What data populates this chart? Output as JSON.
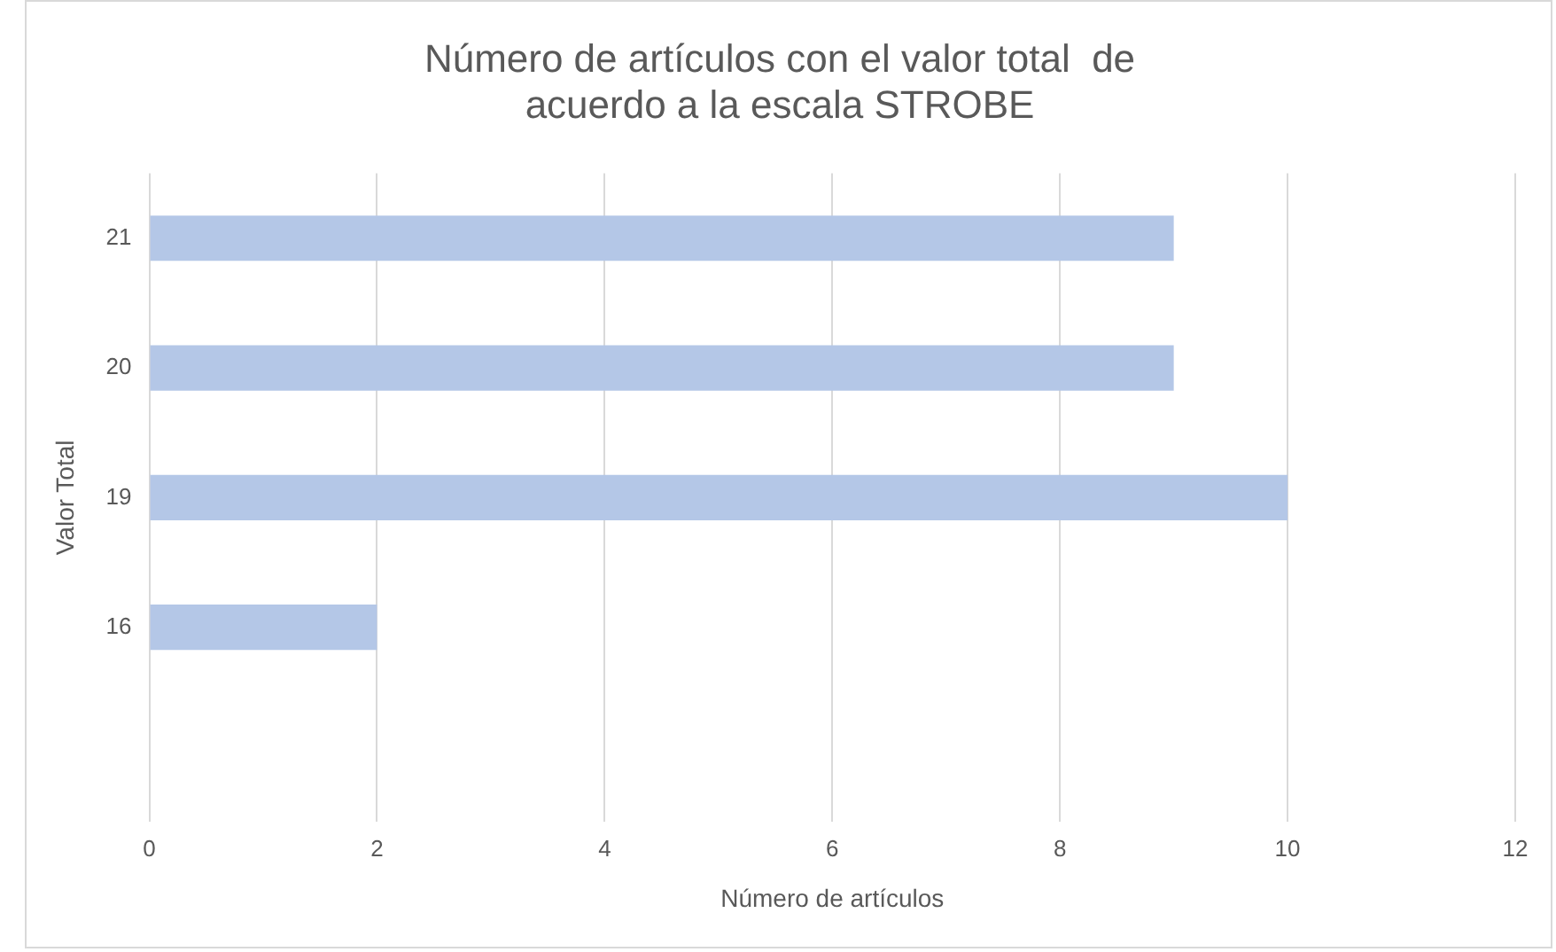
{
  "chart_data": {
    "type": "bar",
    "orientation": "horizontal",
    "title": [
      "Número de artículos con el valor total  de",
      "acuerdo a la escala STROBE"
    ],
    "xlabel": "Número de artículos",
    "ylabel": "Valor Total",
    "categories": [
      "21",
      "20",
      "19",
      "16",
      null
    ],
    "values": [
      9,
      9,
      10,
      2,
      null
    ],
    "color": "#b4c7e7",
    "xlim": [
      0,
      12
    ],
    "xticks": [
      0,
      2,
      4,
      6,
      8,
      10,
      12
    ],
    "grid": "x",
    "legend": false
  }
}
